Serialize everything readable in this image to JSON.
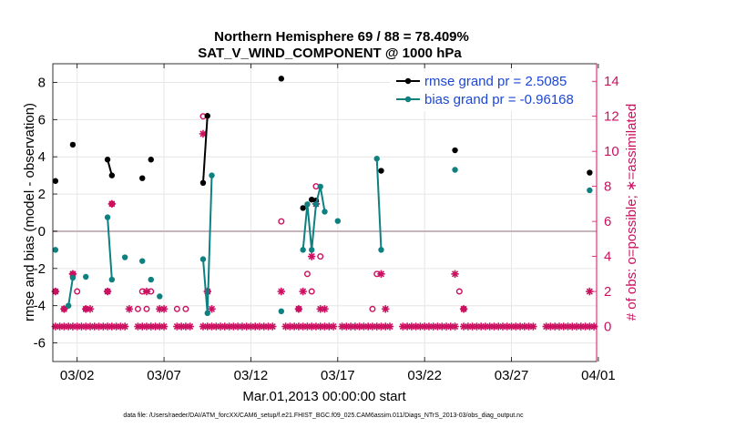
{
  "chart_data": {
    "type": "line",
    "title": "Northern Hemisphere 69 / 88 = 78.409%",
    "subtitle": "SAT_V_WIND_COMPONENT @ 1000 hPa",
    "xlabel": "Mar.01,2013 00:00:00 start",
    "ylabel": "rmse and bias (model - observation)",
    "ylabel_right": "# of obs: o=possible; ∗=assimilated",
    "footnote": "data file: /Users/raeder/DAI/ATM_forcXX/CAM6_setup/f.e21.FHIST_BGC.f09_025.CAM6assim.011/Diags_NTrS_2013-03/obs_diag_output.nc",
    "xlim": [
      0.6,
      31.9
    ],
    "ylim": [
      -7,
      9
    ],
    "ylim_right": [
      -2,
      15
    ],
    "x_ticks": [
      2,
      7,
      12,
      17,
      22,
      27,
      32
    ],
    "x_tick_labels": [
      "03/02",
      "03/07",
      "03/12",
      "03/17",
      "03/22",
      "03/27",
      "04/01"
    ],
    "y_ticks": [
      -6,
      -4,
      -2,
      0,
      2,
      4,
      6,
      8
    ],
    "y_tick_labels": [
      "-6",
      "-4",
      "-2",
      "0",
      "2",
      "4",
      "6",
      "8"
    ],
    "y_ticks_right": [
      0,
      2,
      4,
      6,
      8,
      10,
      12,
      14
    ],
    "y_tick_labels_right": [
      "0",
      "2",
      "4",
      "6",
      "8",
      "10",
      "12",
      "14"
    ],
    "legend_position": "top-right",
    "series": [
      {
        "name": "rmse grand pr = 2.5085",
        "color": "#000000",
        "axis": "left",
        "segments": [
          [
            [
              0.75,
              2.7
            ]
          ],
          [
            [
              1.75,
              4.65
            ]
          ],
          [
            [
              3.75,
              3.85
            ],
            [
              4.0,
              3.0
            ]
          ],
          [
            [
              5.75,
              2.85
            ]
          ],
          [
            [
              6.25,
              3.85
            ]
          ],
          [
            [
              9.25,
              2.6
            ],
            [
              9.5,
              6.2
            ]
          ],
          [
            [
              13.75,
              8.2
            ]
          ],
          [
            [
              15.0,
              1.25
            ]
          ],
          [
            [
              15.5,
              1.7
            ]
          ],
          [
            [
              15.75,
              1.65
            ]
          ],
          [
            [
              19.5,
              3.25
            ]
          ],
          [
            [
              23.75,
              4.35
            ]
          ],
          [
            [
              31.5,
              3.15
            ]
          ]
        ]
      },
      {
        "name": "bias grand pr = -0.96168",
        "color": "#0e8080",
        "axis": "left",
        "segments": [
          [
            [
              0.75,
              -1.0
            ]
          ],
          [
            [
              1.5,
              -4.0
            ],
            [
              1.75,
              -2.5
            ]
          ],
          [
            [
              2.5,
              -2.45
            ]
          ],
          [
            [
              3.75,
              0.75
            ],
            [
              4.0,
              -2.6
            ]
          ],
          [
            [
              4.75,
              -1.4
            ]
          ],
          [
            [
              5.75,
              -1.6
            ]
          ],
          [
            [
              6.25,
              -2.6
            ]
          ],
          [
            [
              6.75,
              -3.5
            ]
          ],
          [
            [
              9.25,
              -1.5
            ],
            [
              9.5,
              -4.4
            ],
            [
              9.75,
              3.0
            ]
          ],
          [
            [
              13.75,
              -4.3
            ]
          ],
          [
            [
              15.0,
              -1.0
            ],
            [
              15.25,
              1.45
            ],
            [
              15.5,
              -1.0
            ],
            [
              15.75,
              1.45
            ],
            [
              16.0,
              2.4
            ],
            [
              16.25,
              1.05
            ]
          ],
          [
            [
              17.0,
              0.55
            ]
          ],
          [
            [
              19.25,
              3.9
            ],
            [
              19.5,
              -1.0
            ]
          ],
          [
            [
              23.75,
              3.3
            ]
          ],
          [
            [
              31.5,
              2.2
            ]
          ]
        ]
      }
    ],
    "obs_possible": [
      [
        0.75,
        2
      ],
      [
        1.25,
        1
      ],
      [
        1.75,
        3
      ],
      [
        2.0,
        2
      ],
      [
        2.5,
        1
      ],
      [
        3.75,
        2
      ],
      [
        4.0,
        7
      ],
      [
        5.5,
        1
      ],
      [
        5.75,
        2
      ],
      [
        6.0,
        1
      ],
      [
        6.25,
        2
      ],
      [
        7.75,
        1
      ],
      [
        8.25,
        1
      ],
      [
        9.25,
        12
      ],
      [
        9.5,
        2
      ],
      [
        13.75,
        6
      ],
      [
        14.75,
        1
      ],
      [
        15.25,
        3
      ],
      [
        15.5,
        2
      ],
      [
        15.75,
        8
      ],
      [
        16.0,
        4
      ],
      [
        19.0,
        1
      ],
      [
        19.25,
        3
      ],
      [
        24.0,
        2
      ],
      [
        24.25,
        1
      ]
    ],
    "obs_assimilated": [
      [
        0.75,
        2
      ],
      [
        1.25,
        1
      ],
      [
        1.75,
        3
      ],
      [
        2.5,
        1
      ],
      [
        2.75,
        1
      ],
      [
        3.75,
        2
      ],
      [
        4.0,
        7
      ],
      [
        5.0,
        1
      ],
      [
        6.0,
        2
      ],
      [
        6.75,
        1
      ],
      [
        7.0,
        1
      ],
      [
        9.25,
        11
      ],
      [
        9.5,
        2
      ],
      [
        9.75,
        1
      ],
      [
        13.75,
        2
      ],
      [
        14.75,
        1
      ],
      [
        15.0,
        2
      ],
      [
        15.5,
        4
      ],
      [
        15.75,
        7
      ],
      [
        16.0,
        1
      ],
      [
        16.25,
        1
      ],
      [
        19.5,
        3
      ],
      [
        19.75,
        1
      ],
      [
        23.75,
        3
      ],
      [
        24.25,
        1
      ],
      [
        31.5,
        2
      ]
    ],
    "obs_zero_days_start": 0.75,
    "obs_zero_days_end": 31.75,
    "obs_zero_step": 0.25,
    "obs_zero_gaps": [
      [
        5.0,
        5.25
      ],
      [
        7.25,
        7.5
      ],
      [
        8.75,
        9.0
      ],
      [
        13.5,
        13.75
      ],
      [
        17.0,
        17.0
      ],
      [
        20.25,
        20.5
      ],
      [
        24.0,
        24.0
      ],
      [
        28.5,
        28.75
      ]
    ]
  },
  "colors": {
    "rmse": "#000000",
    "bias": "#0e8080",
    "obs": "#cc1060",
    "grid": "#e6e6e6",
    "zero_line": "#c8b4bc",
    "legend_text": "#1c47d6"
  }
}
